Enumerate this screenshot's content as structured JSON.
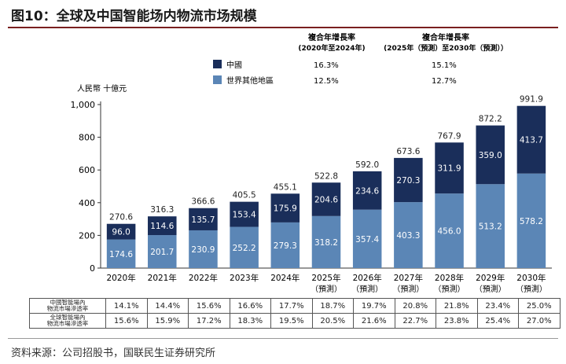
{
  "title": "图10：全球及中国智能场内物流市场规模",
  "source": "资料来源：公司招股书，国联民生证券研究所",
  "chart_data": {
    "type": "bar",
    "stacked": true,
    "unit_label": "人民幣 十億元",
    "categories": [
      "2020年",
      "2021年",
      "2022年",
      "2023年",
      "2024年",
      "2025年",
      "2026年",
      "2027年",
      "2028年",
      "2029年",
      "2030年"
    ],
    "category_notes": [
      "",
      "",
      "",
      "",
      "",
      "（預測）",
      "（預測）",
      "（預測）",
      "（預測）",
      "（預測）",
      "（預測）"
    ],
    "series": [
      {
        "name": "世界其他地區",
        "color": "#5b86b6",
        "values": [
          174.6,
          201.7,
          230.9,
          252.2,
          279.3,
          318.2,
          357.4,
          403.3,
          456.0,
          513.2,
          578.2
        ]
      },
      {
        "name": "中國",
        "color": "#1a2e5a",
        "values": [
          96.0,
          114.6,
          135.7,
          153.4,
          175.9,
          204.6,
          234.6,
          270.3,
          311.9,
          359.0,
          413.7
        ]
      }
    ],
    "totals": [
      270.6,
      316.3,
      366.6,
      405.5,
      455.1,
      522.8,
      592.0,
      673.6,
      767.9,
      872.2,
      991.9
    ],
    "ylim": [
      0,
      1000
    ],
    "yticks": [
      "0",
      "200",
      "400",
      "600",
      "800",
      "1,000"
    ],
    "legend": {
      "header1": "複合年增長率",
      "header1_sub": "(2020年至2024年)",
      "header2": "複合年增長率",
      "header2_sub": "(2025年（預測）至2030年（預測））",
      "rows": [
        {
          "label": "中國",
          "color": "#1a2e5a",
          "cagr1": "16.3%",
          "cagr2": "15.1%"
        },
        {
          "label": "世界其他地區",
          "color": "#5b86b6",
          "cagr1": "12.5%",
          "cagr2": "12.7%"
        }
      ]
    }
  },
  "table": {
    "rows": [
      {
        "label1": "中國智能場內",
        "label2": "物流市場滲透率",
        "values": [
          "14.1%",
          "14.4%",
          "15.6%",
          "16.6%",
          "17.7%",
          "18.7%",
          "19.7%",
          "20.8%",
          "21.8%",
          "23.4%",
          "25.0%"
        ]
      },
      {
        "label1": "全球智能場內",
        "label2": "物流市場滲透率",
        "values": [
          "15.6%",
          "15.9%",
          "17.2%",
          "18.3%",
          "19.5%",
          "20.5%",
          "21.6%",
          "22.7%",
          "23.8%",
          "25.4%",
          "27.0%"
        ]
      }
    ]
  }
}
